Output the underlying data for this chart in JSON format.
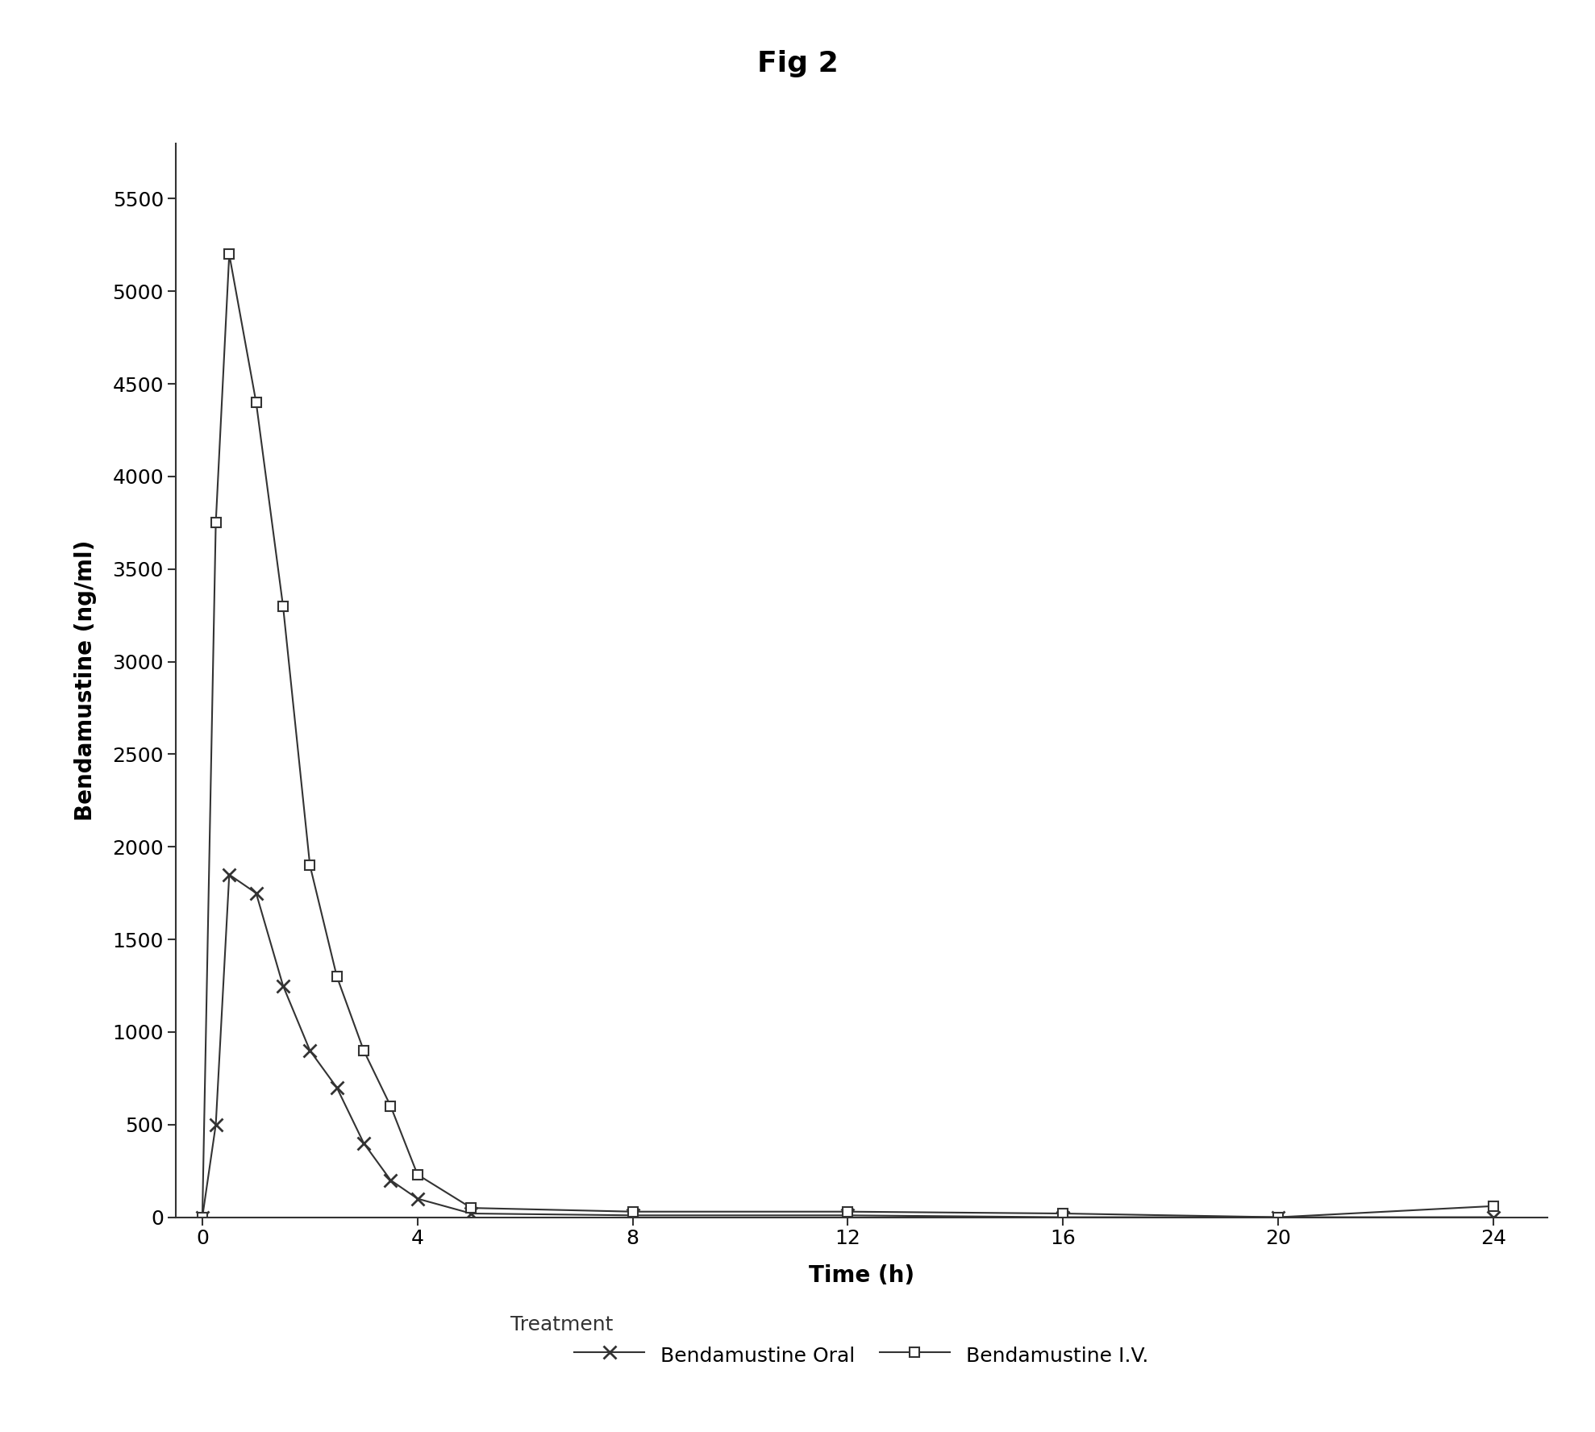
{
  "title": "Fig 2",
  "xlabel": "Time (h)",
  "ylabel": "Bendamustine (ng/ml)",
  "oral_x": [
    0,
    0.25,
    0.5,
    1.0,
    1.5,
    2.0,
    2.5,
    3.0,
    3.5,
    4.0,
    5.0,
    8.0,
    12.0,
    16.0,
    20.0,
    24.0
  ],
  "oral_y": [
    0,
    500,
    1850,
    1750,
    1250,
    900,
    700,
    400,
    200,
    100,
    20,
    10,
    10,
    0,
    0,
    0
  ],
  "iv_x": [
    0,
    0.25,
    0.5,
    1.0,
    1.5,
    2.0,
    2.5,
    3.0,
    3.5,
    4.0,
    5.0,
    8.0,
    12.0,
    16.0,
    20.0,
    24.0
  ],
  "iv_y": [
    0,
    3750,
    5200,
    4400,
    3300,
    1900,
    1300,
    900,
    600,
    230,
    50,
    30,
    30,
    20,
    0,
    60
  ],
  "line_color": "#333333",
  "ylim": [
    0,
    5800
  ],
  "yticks": [
    0,
    500,
    1000,
    1500,
    2000,
    2500,
    3000,
    3500,
    4000,
    4500,
    5000,
    5500
  ],
  "xticks": [
    0,
    4,
    8,
    12,
    16,
    20,
    24
  ],
  "xlim": [
    -0.5,
    25
  ],
  "background_color": "#ffffff",
  "legend_label_oral": "Bendamustine Oral",
  "legend_label_iv": "Bendamustine I.V.",
  "legend_prefix": "Treatment",
  "title_fontsize": 26,
  "label_fontsize": 20,
  "tick_fontsize": 18,
  "legend_fontsize": 18
}
